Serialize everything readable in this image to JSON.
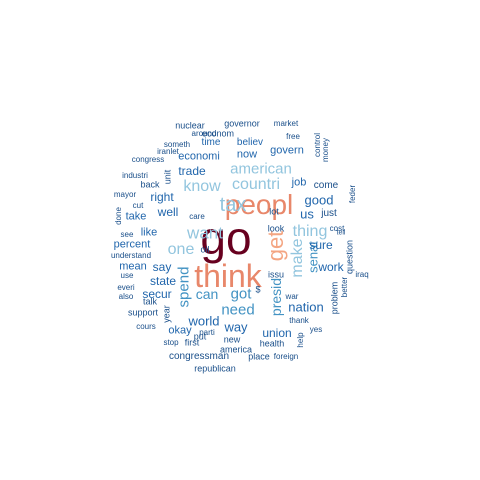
{
  "colors": {
    "darkest": "#67001f",
    "salmon": "#e8876a",
    "peach": "#f4a582",
    "lightblue": "#92c5de",
    "midblue": "#4393c3",
    "blue": "#2166ac",
    "navy": "#1a4f8a"
  },
  "words": [
    {
      "text": "go",
      "color": "darkest"
    },
    {
      "text": "think",
      "color": "salmon"
    },
    {
      "text": "peopl",
      "color": "salmon"
    },
    {
      "text": "get",
      "color": "peach"
    },
    {
      "text": "tax",
      "color": "lightblue"
    },
    {
      "text": "want",
      "color": "lightblue"
    },
    {
      "text": "know",
      "color": "lightblue"
    },
    {
      "text": "countri",
      "color": "lightblue"
    },
    {
      "text": "american",
      "color": "lightblue"
    },
    {
      "text": "thing",
      "color": "lightblue"
    },
    {
      "text": "make",
      "color": "lightblue"
    },
    {
      "text": "one",
      "color": "lightblue"
    },
    {
      "text": "spend",
      "color": "midblue"
    },
    {
      "text": "can",
      "color": "midblue"
    },
    {
      "text": "got",
      "color": "midblue"
    },
    {
      "text": "need",
      "color": "midblue"
    },
    {
      "text": "presid",
      "color": "midblue"
    },
    {
      "text": "senat",
      "color": "midblue"
    },
    {
      "text": "good",
      "color": "blue"
    },
    {
      "text": "us",
      "color": "blue"
    },
    {
      "text": "way",
      "color": "blue"
    },
    {
      "text": "world",
      "color": "blue"
    },
    {
      "text": "nation",
      "color": "blue"
    },
    {
      "text": "union",
      "color": "blue"
    },
    {
      "text": "sure",
      "color": "blue"
    },
    {
      "text": "work",
      "color": "blue"
    },
    {
      "text": "state",
      "color": "blue"
    },
    {
      "text": "secur",
      "color": "blue"
    },
    {
      "text": "well",
      "color": "blue"
    },
    {
      "text": "right",
      "color": "blue"
    },
    {
      "text": "trade",
      "color": "blue"
    },
    {
      "text": "econom",
      "color": "navy"
    },
    {
      "text": "economi",
      "color": "blue"
    },
    {
      "text": "now",
      "color": "blue"
    },
    {
      "text": "govern",
      "color": "blue"
    },
    {
      "text": "time",
      "color": "blue"
    },
    {
      "text": "believ",
      "color": "blue"
    },
    {
      "text": "job",
      "color": "blue"
    },
    {
      "text": "lot",
      "color": "navy"
    },
    {
      "text": "come",
      "color": "navy"
    },
    {
      "text": "just",
      "color": "navy"
    },
    {
      "text": "say",
      "color": "blue"
    },
    {
      "text": "like",
      "color": "blue"
    },
    {
      "text": "percent",
      "color": "blue"
    },
    {
      "text": "mean",
      "color": "blue"
    },
    {
      "text": "take",
      "color": "blue"
    },
    {
      "text": "okay",
      "color": "blue"
    },
    {
      "text": "year",
      "color": "navy"
    },
    {
      "text": "unit",
      "color": "navy"
    },
    {
      "text": "look",
      "color": "navy"
    },
    {
      "text": "issu",
      "color": "navy"
    },
    {
      "text": "problem",
      "color": "navy"
    },
    {
      "text": "question",
      "color": "navy"
    },
    {
      "text": "congressman",
      "color": "navy"
    },
    {
      "text": "governor",
      "color": "navy"
    },
    {
      "text": "market",
      "color": "navy"
    },
    {
      "text": "nuclear",
      "color": "navy"
    },
    {
      "text": "around",
      "color": "navy"
    },
    {
      "text": "free",
      "color": "navy"
    },
    {
      "text": "someth",
      "color": "navy"
    },
    {
      "text": "control",
      "color": "navy"
    },
    {
      "text": "money",
      "color": "navy"
    },
    {
      "text": "iranlet",
      "color": "navy"
    },
    {
      "text": "congress",
      "color": "navy"
    },
    {
      "text": "industri",
      "color": "navy"
    },
    {
      "text": "mayor",
      "color": "navy"
    },
    {
      "text": "back",
      "color": "navy"
    },
    {
      "text": "cut",
      "color": "navy"
    },
    {
      "text": "done",
      "color": "navy"
    },
    {
      "text": "care",
      "color": "navy"
    },
    {
      "text": "feder",
      "color": "navy"
    },
    {
      "text": "see",
      "color": "navy"
    },
    {
      "text": "cost",
      "color": "navy"
    },
    {
      "text": "tell",
      "color": "navy"
    },
    {
      "text": "oil",
      "color": "navy"
    },
    {
      "text": "understand",
      "color": "navy"
    },
    {
      "text": "use",
      "color": "navy"
    },
    {
      "text": "everi",
      "color": "navy"
    },
    {
      "text": "also",
      "color": "navy"
    },
    {
      "text": "talk",
      "color": "navy"
    },
    {
      "text": "$",
      "color": "navy"
    },
    {
      "text": "iraq",
      "color": "navy"
    },
    {
      "text": "better",
      "color": "navy"
    },
    {
      "text": "war",
      "color": "navy"
    },
    {
      "text": "thank",
      "color": "navy"
    },
    {
      "text": "support",
      "color": "navy"
    },
    {
      "text": "put",
      "color": "navy"
    },
    {
      "text": "parti",
      "color": "navy"
    },
    {
      "text": "cours",
      "color": "navy"
    },
    {
      "text": "yes",
      "color": "navy"
    },
    {
      "text": "help",
      "color": "navy"
    },
    {
      "text": "health",
      "color": "navy"
    },
    {
      "text": "america",
      "color": "navy"
    },
    {
      "text": "new",
      "color": "navy"
    },
    {
      "text": "first",
      "color": "navy"
    },
    {
      "text": "stop",
      "color": "navy"
    },
    {
      "text": "place",
      "color": "navy"
    },
    {
      "text": "foreign",
      "color": "navy"
    },
    {
      "text": "republican",
      "color": "navy"
    }
  ]
}
